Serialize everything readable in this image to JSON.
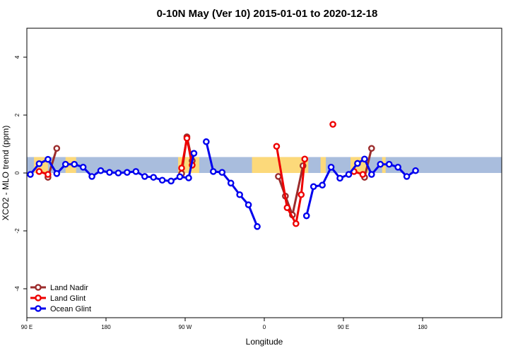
{
  "chart_data": {
    "type": "line",
    "title": "0-10N May (Ver 10)   2015-01-01 to 2020-12-18",
    "xlabel": "Longitude",
    "ylabel": "XCO2 - MLO trend (ppm)",
    "xlim": [
      -90,
      180
    ],
    "ylim": [
      -5,
      5
    ],
    "x_ticks": [
      {
        "value": -90,
        "label": "90 E"
      },
      {
        "value": -45,
        "label": "180"
      },
      {
        "value": 0,
        "label": "90 W"
      },
      {
        "value": 45,
        "label": "0"
      },
      {
        "value": 90,
        "label": "90 E"
      },
      {
        "value": 135,
        "label": "180"
      }
    ],
    "y_ticks": [
      -4,
      -2,
      0,
      2,
      4
    ],
    "grid": false,
    "legend_position": "bottom-left",
    "band": {
      "ymin": 0,
      "ymax": 0.55,
      "ocean_color": "#a9bddd",
      "land_color": "#fcd97a"
    },
    "land_segments": [
      [
        -86,
        -78
      ],
      [
        -68,
        -62
      ],
      [
        -4,
        8
      ],
      [
        38,
        70
      ],
      [
        77,
        80
      ],
      [
        94,
        104
      ],
      [
        112,
        114
      ]
    ],
    "series": [
      {
        "name": "Land Nadir",
        "color": "#9b2c2c",
        "points": [
          [
            -78,
            -0.15
          ],
          [
            -73,
            0.85
          ],
          [
            -2,
            -0.02
          ],
          [
            1,
            1.25
          ],
          [
            4,
            0.42
          ],
          [
            53,
            -0.12
          ],
          [
            57,
            -0.8
          ],
          [
            61,
            -1.45
          ],
          [
            67,
            0.25
          ],
          [
            102,
            -0.15
          ],
          [
            106,
            0.85
          ]
        ]
      },
      {
        "name": "Land Glint",
        "color": "#ee0000",
        "points": [
          [
            -83,
            0.05
          ],
          [
            -78,
            -0.05
          ],
          [
            -2,
            0.17
          ],
          [
            1,
            1.2
          ],
          [
            4,
            0.27
          ],
          [
            52,
            0.92
          ],
          [
            58,
            -1.2
          ],
          [
            63,
            -1.75
          ],
          [
            66,
            -0.75
          ],
          [
            68,
            0.48
          ],
          [
            96,
            0.05
          ],
          [
            101,
            -0.05
          ]
        ],
        "isolated_points": [
          [
            84,
            1.68
          ]
        ]
      },
      {
        "name": "Ocean Glint",
        "color": "#0000ee",
        "points": [
          [
            -88,
            -0.05
          ],
          [
            -83,
            0.32
          ],
          [
            -78,
            0.47
          ],
          [
            -73,
            -0.02
          ],
          [
            -68,
            0.3
          ],
          [
            -63,
            0.3
          ],
          [
            -58,
            0.2
          ],
          [
            -53,
            -0.12
          ],
          [
            -48,
            0.08
          ],
          [
            -43,
            0.02
          ],
          [
            -38,
            0.0
          ],
          [
            -33,
            0.02
          ],
          [
            -28,
            0.05
          ],
          [
            -23,
            -0.12
          ],
          [
            -18,
            -0.15
          ],
          [
            -13,
            -0.25
          ],
          [
            -8,
            -0.28
          ],
          [
            -3,
            -0.13
          ],
          [
            2,
            -0.17
          ],
          [
            5,
            0.68
          ],
          [
            9,
            null
          ],
          [
            12,
            1.08
          ],
          [
            16,
            0.05
          ],
          [
            21,
            0.02
          ],
          [
            26,
            -0.35
          ],
          [
            31,
            -0.75
          ],
          [
            36,
            -1.1
          ],
          [
            41,
            -1.85
          ]
        ],
        "points_right": [
          [
            69,
            -1.48
          ],
          [
            73,
            -0.47
          ],
          [
            78,
            -0.42
          ],
          [
            83,
            0.2
          ],
          [
            88,
            -0.18
          ],
          [
            93,
            -0.05
          ],
          [
            98,
            0.33
          ],
          [
            102,
            0.48
          ],
          [
            106,
            -0.05
          ],
          [
            111,
            0.3
          ],
          [
            116,
            0.3
          ],
          [
            121,
            0.2
          ],
          [
            126,
            -0.12
          ],
          [
            131,
            0.08
          ]
        ]
      }
    ]
  }
}
